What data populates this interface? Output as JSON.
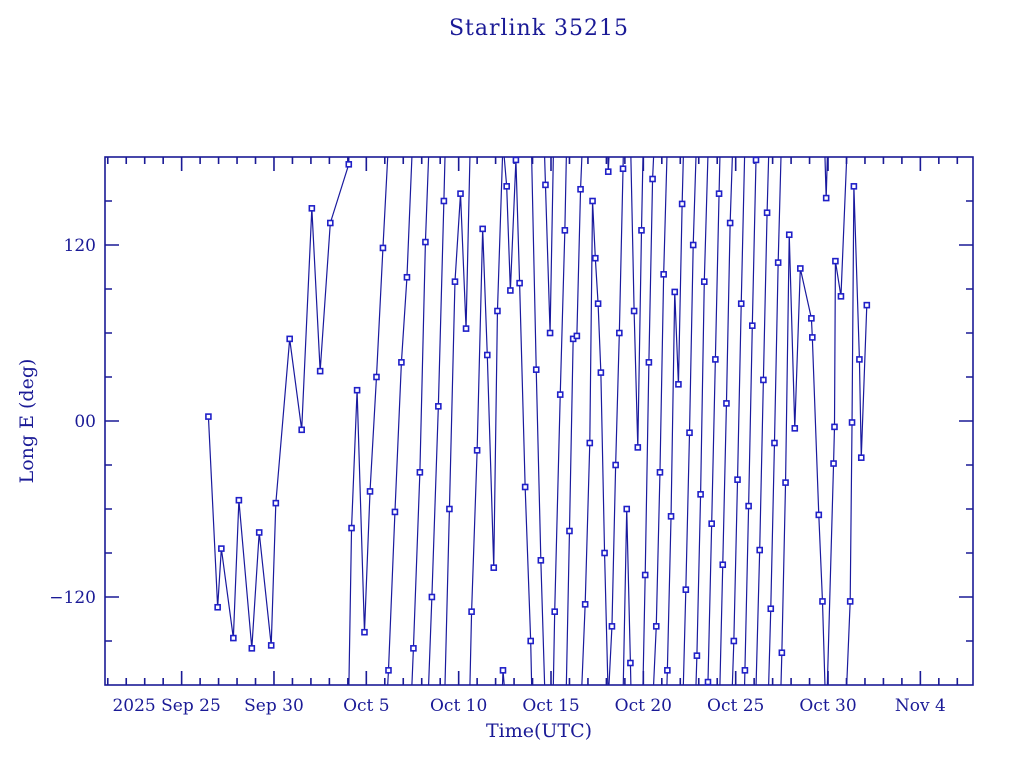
{
  "window": {
    "background": "#ffffff"
  },
  "chart_data": {
    "type": "line",
    "title": "Starlink 35215",
    "xlabel": "Time(UTC)",
    "ylabel": "Long E (deg)",
    "x_unit": "days relative to 2025 Sep 25 (UTC)",
    "xlim": [
      -4.15,
      42.85
    ],
    "ylim": [
      -180,
      180
    ],
    "wrap_degrees": 360,
    "grid": false,
    "legend": "none",
    "x_major_tick_days": [
      0,
      5,
      10,
      15,
      20,
      25,
      30,
      35,
      40
    ],
    "x_major_labels": [
      "2025 Sep 25",
      "Sep 30",
      "Oct  5",
      "Oct 10",
      "Oct 15",
      "Oct 20",
      "Oct 25",
      "Oct 30",
      "Nov  4"
    ],
    "x_minor_step_days": 1,
    "y_major_ticks": [
      120,
      0,
      -120
    ],
    "y_major_labels": [
      "120",
      "00",
      "−120"
    ],
    "y_minor_step": 30,
    "colors": {
      "line": "#1a1a9e",
      "marker": "#2020c8",
      "marker_fill": "#ffffff",
      "frame": "#1a1a96",
      "text": "#1a1a96",
      "background": "#ffffff"
    },
    "points": [
      [
        1.45,
        3
      ],
      [
        1.95,
        -127
      ],
      [
        2.15,
        -87
      ],
      [
        2.8,
        -148
      ],
      [
        3.1,
        -54
      ],
      [
        3.8,
        -155
      ],
      [
        4.2,
        -76
      ],
      [
        4.85,
        -153
      ],
      [
        5.1,
        -56
      ],
      [
        5.85,
        56
      ],
      [
        6.5,
        -6
      ],
      [
        7.05,
        145
      ],
      [
        7.5,
        34
      ],
      [
        8.05,
        135
      ],
      [
        9.05,
        175
      ],
      [
        9.2,
        -73
      ],
      [
        9.5,
        21
      ],
      [
        9.9,
        -144
      ],
      [
        10.2,
        -48
      ],
      [
        10.55,
        30
      ],
      [
        10.9,
        118
      ],
      [
        11.2,
        -170
      ],
      [
        11.55,
        -62
      ],
      [
        11.9,
        40
      ],
      [
        12.2,
        98
      ],
      [
        12.55,
        -155
      ],
      [
        12.9,
        -35
      ],
      [
        13.2,
        122
      ],
      [
        13.55,
        -120
      ],
      [
        13.9,
        10
      ],
      [
        14.2,
        150
      ],
      [
        14.5,
        -60
      ],
      [
        14.8,
        95
      ],
      [
        15.1,
        155
      ],
      [
        15.4,
        63
      ],
      [
        15.7,
        -130
      ],
      [
        16.0,
        -20
      ],
      [
        16.3,
        131
      ],
      [
        16.55,
        45
      ],
      [
        16.9,
        -100
      ],
      [
        17.1,
        75
      ],
      [
        17.4,
        -170
      ],
      [
        17.6,
        160
      ],
      [
        17.8,
        89
      ],
      [
        18.1,
        178
      ],
      [
        18.3,
        94
      ],
      [
        18.6,
        -45
      ],
      [
        18.9,
        -150
      ],
      [
        19.2,
        35
      ],
      [
        19.45,
        -95
      ],
      [
        19.7,
        161
      ],
      [
        19.95,
        60
      ],
      [
        20.2,
        -130
      ],
      [
        20.5,
        18
      ],
      [
        20.75,
        130
      ],
      [
        21.0,
        -75
      ],
      [
        21.2,
        56
      ],
      [
        21.4,
        58
      ],
      [
        21.6,
        158
      ],
      [
        21.85,
        -125
      ],
      [
        22.1,
        -15
      ],
      [
        22.25,
        150
      ],
      [
        22.4,
        111
      ],
      [
        22.55,
        80
      ],
      [
        22.7,
        33
      ],
      [
        22.9,
        -90
      ],
      [
        23.1,
        170
      ],
      [
        23.3,
        -140
      ],
      [
        23.5,
        -30
      ],
      [
        23.7,
        60
      ],
      [
        23.9,
        172
      ],
      [
        24.1,
        -60
      ],
      [
        24.3,
        -165
      ],
      [
        24.5,
        75
      ],
      [
        24.7,
        -18
      ],
      [
        24.9,
        130
      ],
      [
        25.1,
        -105
      ],
      [
        25.3,
        40
      ],
      [
        25.5,
        165
      ],
      [
        25.7,
        -140
      ],
      [
        25.9,
        -35
      ],
      [
        26.1,
        100
      ],
      [
        26.3,
        -170
      ],
      [
        26.5,
        -65
      ],
      [
        26.7,
        88
      ],
      [
        26.9,
        25
      ],
      [
        27.1,
        148
      ],
      [
        27.3,
        -115
      ],
      [
        27.5,
        -8
      ],
      [
        27.7,
        120
      ],
      [
        27.9,
        -160
      ],
      [
        28.1,
        -50
      ],
      [
        28.3,
        95
      ],
      [
        28.5,
        -178
      ],
      [
        28.7,
        -70
      ],
      [
        28.9,
        42
      ],
      [
        29.1,
        155
      ],
      [
        29.3,
        -98
      ],
      [
        29.5,
        12
      ],
      [
        29.7,
        135
      ],
      [
        29.9,
        -150
      ],
      [
        30.1,
        -40
      ],
      [
        30.3,
        80
      ],
      [
        30.5,
        -170
      ],
      [
        30.7,
        -58
      ],
      [
        30.9,
        65
      ],
      [
        31.1,
        178
      ],
      [
        31.3,
        -88
      ],
      [
        31.5,
        28
      ],
      [
        31.7,
        142
      ],
      [
        31.9,
        -128
      ],
      [
        32.1,
        -15
      ],
      [
        32.3,
        108
      ],
      [
        32.5,
        -158
      ],
      [
        32.7,
        -42
      ],
      [
        32.9,
        127
      ],
      [
        33.2,
        -5
      ],
      [
        33.5,
        104
      ],
      [
        34.1,
        70
      ],
      [
        34.15,
        57
      ],
      [
        34.5,
        -64
      ],
      [
        34.7,
        -123
      ],
      [
        34.9,
        152
      ],
      [
        35.3,
        -29
      ],
      [
        35.35,
        -4
      ],
      [
        35.4,
        109
      ],
      [
        35.7,
        85
      ],
      [
        36.2,
        -123
      ],
      [
        36.3,
        -1
      ],
      [
        36.4,
        160
      ],
      [
        36.7,
        42
      ],
      [
        36.8,
        -25
      ],
      [
        37.1,
        79
      ]
    ]
  }
}
